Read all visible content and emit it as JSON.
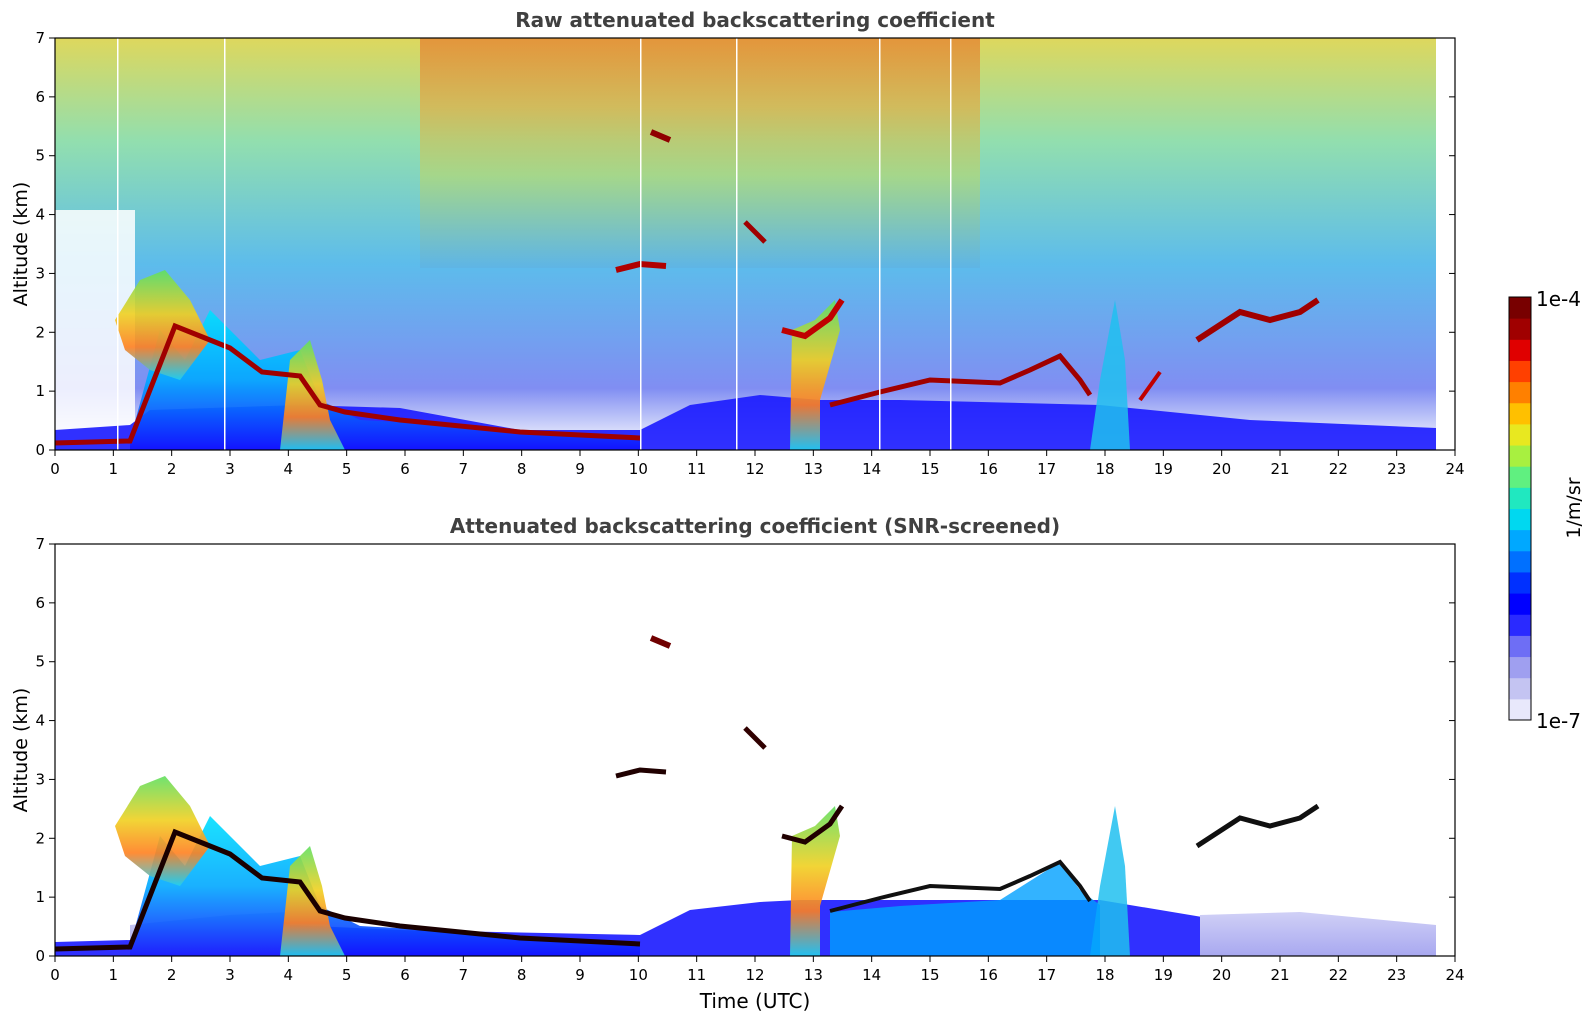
{
  "chart_data": [
    {
      "type": "heatmap",
      "panel": "top",
      "title": "Raw attenuated backscattering coefficient",
      "xlabel": "",
      "ylabel": "Altitude (km)",
      "xlim": [
        0,
        24
      ],
      "ylim": [
        0,
        7
      ],
      "x_ticks": [
        "0",
        "1",
        "2",
        "3",
        "4",
        "5",
        "6",
        "7",
        "8",
        "9",
        "10",
        "11",
        "12",
        "13",
        "14",
        "15",
        "16",
        "17",
        "18",
        "19",
        "20",
        "21",
        "22",
        "23",
        "24"
      ],
      "y_ticks": [
        "0",
        "1",
        "2",
        "3",
        "4",
        "5",
        "6",
        "7"
      ],
      "data_end_hour": 23.6,
      "features": [
        {
          "name": "boundary-layer-top",
          "line": [
            [
              0,
              0.12
            ],
            [
              1.2,
              0.15
            ],
            [
              2.0,
              2.0
            ],
            [
              3.0,
              1.65
            ],
            [
              4.0,
              1.3
            ],
            [
              4.5,
              0.75
            ],
            [
              6.0,
              0.5
            ],
            [
              8.0,
              0.3
            ],
            [
              10.0,
              0.2
            ]
          ]
        },
        {
          "name": "cloud-2-3km",
          "line": [
            [
              9.8,
              3.0
            ],
            [
              10.4,
              3.1
            ]
          ]
        },
        {
          "name": "cloud-5km",
          "line": [
            [
              10.4,
              5.3
            ],
            [
              10.6,
              5.2
            ]
          ]
        },
        {
          "name": "cloud-4km",
          "line": [
            [
              11.8,
              3.9
            ],
            [
              12.1,
              3.6
            ]
          ]
        },
        {
          "name": "cloud-13h",
          "line": [
            [
              12.6,
              2.0
            ],
            [
              13.0,
              1.8
            ],
            [
              13.5,
              2.6
            ]
          ]
        },
        {
          "name": "cloud-1km",
          "line": [
            [
              13.5,
              0.8
            ],
            [
              15.5,
              1.1
            ],
            [
              16.5,
              1.3
            ],
            [
              17.0,
              1.6
            ]
          ]
        },
        {
          "name": "cloud-2km-late",
          "line": [
            [
              19.5,
              1.9
            ],
            [
              20.3,
              2.2
            ],
            [
              20.9,
              2.2
            ],
            [
              21.3,
              2.5
            ]
          ]
        }
      ]
    },
    {
      "type": "heatmap",
      "panel": "bottom",
      "title": "Attenuated backscattering coefficient (SNR-screened)",
      "xlabel": "Time (UTC)",
      "ylabel": "Altitude (km)",
      "xlim": [
        0,
        24
      ],
      "ylim": [
        0,
        7
      ],
      "x_ticks": [
        "0",
        "1",
        "2",
        "3",
        "4",
        "5",
        "6",
        "7",
        "8",
        "9",
        "10",
        "11",
        "12",
        "13",
        "14",
        "15",
        "16",
        "17",
        "18",
        "19",
        "20",
        "21",
        "22",
        "23",
        "24"
      ],
      "y_ticks": [
        "0",
        "1",
        "2",
        "3",
        "4",
        "5",
        "6",
        "7"
      ],
      "data_end_hour": 23.6,
      "features": [
        {
          "name": "boundary-layer-top",
          "line": [
            [
              0,
              0.12
            ],
            [
              1.2,
              0.15
            ],
            [
              2.0,
              2.0
            ],
            [
              3.0,
              1.65
            ],
            [
              4.0,
              1.3
            ],
            [
              4.5,
              0.75
            ],
            [
              6.0,
              0.5
            ],
            [
              8.0,
              0.3
            ],
            [
              10.0,
              0.2
            ]
          ]
        },
        {
          "name": "cloud-1km",
          "line": [
            [
              13.5,
              0.8
            ],
            [
              15.5,
              1.1
            ],
            [
              16.5,
              1.3
            ],
            [
              17.0,
              1.6
            ]
          ]
        },
        {
          "name": "cloud-2km-late",
          "line": [
            [
              19.5,
              1.9
            ],
            [
              20.3,
              2.2
            ],
            [
              20.9,
              2.2
            ],
            [
              21.3,
              2.5
            ]
          ]
        }
      ]
    }
  ],
  "colorbar": {
    "label": "1/m/sr",
    "max_label": "1e-4",
    "min_label": "1e-7",
    "colors": [
      "#e8e8fb",
      "#c4c4f2",
      "#9f9ff0",
      "#6e6ef5",
      "#2a2aff",
      "#0000ff",
      "#0030ff",
      "#0070ff",
      "#00a8ff",
      "#00d8f0",
      "#20e8c0",
      "#60f080",
      "#a8f040",
      "#e8e820",
      "#ffc000",
      "#ff8000",
      "#ff4000",
      "#e00000",
      "#a00000",
      "#780000"
    ]
  }
}
